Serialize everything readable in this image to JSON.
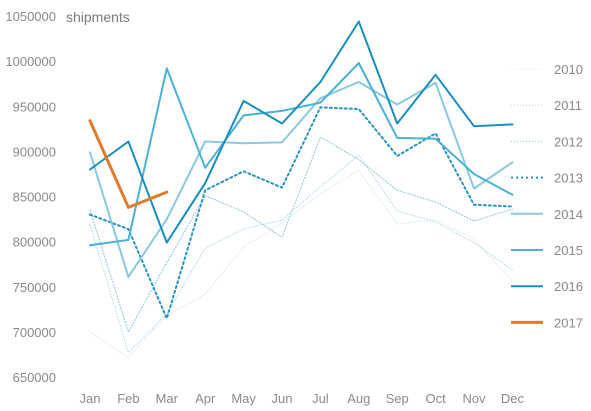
{
  "chart_data": {
    "type": "line",
    "title": "",
    "xlabel": "",
    "ylabel": "shipments",
    "categories": [
      "Jan",
      "Feb",
      "Mar",
      "Apr",
      "May",
      "Jun",
      "Jul",
      "Aug",
      "Sep",
      "Oct",
      "Nov",
      "Dec"
    ],
    "yticks": [
      "1050000",
      "1000000",
      "950000",
      "900000",
      "850000",
      "800000",
      "750000",
      "700000",
      "650000"
    ],
    "ylim": [
      650000,
      1050000
    ],
    "grid": false,
    "legend_position": "right",
    "series": [
      {
        "name": "2010",
        "color": "#d6eaf2",
        "dash": "1,2",
        "width": 1,
        "values": [
          701000,
          673000,
          719000,
          743000,
          795000,
          822000,
          854000,
          880000,
          821000,
          825000,
          804000,
          757000
        ]
      },
      {
        "name": "2011",
        "color": "#b3d9e9",
        "dash": "1,2",
        "width": 1,
        "values": [
          820000,
          678000,
          721000,
          794000,
          815000,
          825000,
          862000,
          897000,
          835000,
          823000,
          800000,
          770000
        ]
      },
      {
        "name": "2012",
        "color": "#7fc2dc",
        "dash": "1,2",
        "width": 1,
        "values": [
          836000,
          701000,
          778000,
          852000,
          834000,
          806000,
          917000,
          892000,
          858000,
          845000,
          824000,
          837000
        ]
      },
      {
        "name": "2013",
        "color": "#2b93c0",
        "dash": "2,3",
        "width": 2,
        "values": [
          831000,
          815000,
          716000,
          858000,
          879000,
          861000,
          950000,
          948000,
          896000,
          921000,
          842000,
          840000
        ]
      },
      {
        "name": "2014",
        "color": "#8ac9e0",
        "dash": "",
        "width": 2,
        "values": [
          900000,
          762000,
          826000,
          912000,
          910000,
          911000,
          960000,
          978000,
          953000,
          977000,
          860000,
          889000
        ]
      },
      {
        "name": "2015",
        "color": "#4db0d6",
        "dash": "",
        "width": 2,
        "values": [
          797000,
          803000,
          993000,
          883000,
          941000,
          946000,
          955000,
          999000,
          916000,
          915000,
          876000,
          853000
        ]
      },
      {
        "name": "2016",
        "color": "#1a8ebd",
        "dash": "",
        "width": 2,
        "values": [
          881000,
          912000,
          800000,
          866000,
          957000,
          932000,
          978000,
          1045000,
          932000,
          986000,
          929000,
          931000
        ]
      },
      {
        "name": "2017",
        "color": "#e07b2a",
        "dash": "",
        "width": 3,
        "values": [
          935000,
          839000,
          856000,
          null,
          null,
          null,
          null,
          null,
          null,
          null,
          null,
          null
        ]
      }
    ]
  }
}
